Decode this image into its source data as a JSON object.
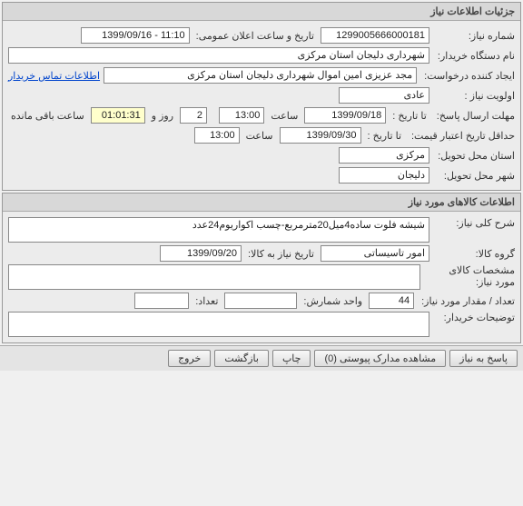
{
  "panel1": {
    "title": "جزئیات اطلاعات نیاز",
    "need_number_label": "شماره نیاز:",
    "need_number": "1299005666000181",
    "announce_label": "تاریخ و ساعت اعلان عمومی:",
    "announce_value": "11:10 - 1399/09/16",
    "buyer_org_label": "نام دستگاه خریدار:",
    "buyer_org": "شهرداری دلیجان استان مرکزی",
    "requester_label": "ایجاد کننده درخواست:",
    "requester": "مجد عزیزی امین اموال شهرداری دلیجان استان مرکزی",
    "contact_link": "اطلاعات تماس خریدار",
    "priority_label": "اولویت نیاز :",
    "priority": "عادی",
    "deadline_label": "مهلت ارسال پاسخ:",
    "to_date_label": "تا تاریخ :",
    "deadline_date": "1399/09/18",
    "time_label": "ساعت",
    "deadline_time": "13:00",
    "days_left": "2",
    "days_label": "روز و",
    "countdown": "01:01:31",
    "remain_label": "ساعت باقی مانده",
    "min_credit_label": "حداقل تاریخ اعتبار قیمت:",
    "to_date_label2": "تا تاریخ :",
    "credit_date": "1399/09/30",
    "credit_time": "13:00",
    "province_label": "استان محل تحویل:",
    "province": "مرکزی",
    "city_label": "شهر محل تحویل:",
    "city": "دلیجان"
  },
  "panel2": {
    "title": "اطلاعات کالاهای مورد نیاز",
    "desc_label": "شرح کلی نیاز:",
    "desc": "شیشه فلوت ساده4میل20مترمربع-چسب اکواریوم24عدد",
    "group_label": "گروه کالا:",
    "group": "امور تاسیساتی",
    "need_by_label": "تاریخ نیاز به کالا:",
    "need_by": "1399/09/20",
    "specs_label": "مشخصات کالای مورد نیاز:",
    "specs": "",
    "qty_label": "تعداد / مقدار مورد نیاز:",
    "qty": "44",
    "unit_label": "واحد شمارش:",
    "unit": "",
    "count_label": "تعداد:",
    "count": "",
    "buyer_notes_label": "توضیحات خریدار:",
    "buyer_notes": ""
  },
  "buttons": {
    "reply": "پاسخ به نیاز",
    "attachments": "مشاهده مدارک پیوستی (0)",
    "print": "چاپ",
    "back": "بازگشت",
    "exit": "خروج"
  }
}
